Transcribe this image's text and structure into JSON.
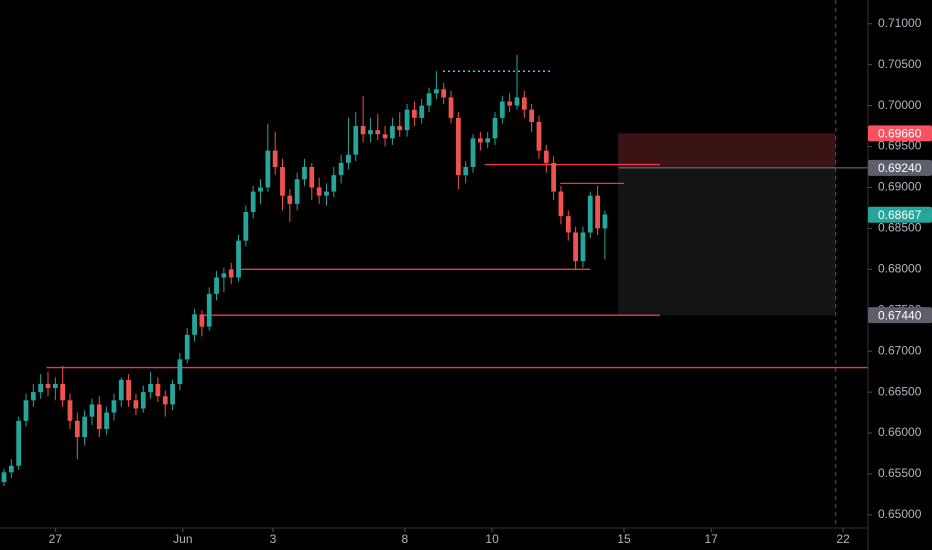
{
  "chart_data": {
    "type": "candlestick",
    "up_color": "#26a69a",
    "down_color": "#ef5350",
    "xlim": [
      -0.55,
      117.9
    ],
    "ylim": [
      0.6484,
      0.7129
    ],
    "xticks": [
      {
        "value": 7,
        "label": "27"
      },
      {
        "value": 24.4,
        "label": "Jun"
      },
      {
        "value": 36.7,
        "label": "3"
      },
      {
        "value": 54.7,
        "label": "8"
      },
      {
        "value": 66.6,
        "label": "10"
      },
      {
        "value": 84.6,
        "label": "15"
      },
      {
        "value": 96.5,
        "label": "17"
      },
      {
        "value": 114.5,
        "label": "22"
      }
    ],
    "yticks": [
      {
        "value": 0.65,
        "label": "0.65000"
      },
      {
        "value": 0.655,
        "label": "0.65500"
      },
      {
        "value": 0.66,
        "label": "0.66000"
      },
      {
        "value": 0.665,
        "label": "0.66500"
      },
      {
        "value": 0.67,
        "label": "0.67000"
      },
      {
        "value": 0.675,
        "label": "0.67500"
      },
      {
        "value": 0.68,
        "label": "0.68000"
      },
      {
        "value": 0.685,
        "label": "0.68500"
      },
      {
        "value": 0.69,
        "label": "0.69000"
      },
      {
        "value": 0.695,
        "label": "0.69500"
      },
      {
        "value": 0.7,
        "label": "0.70000"
      },
      {
        "value": 0.705,
        "label": "0.70500"
      },
      {
        "value": 0.71,
        "label": "0.71000"
      }
    ],
    "x": [
      0,
      1,
      2,
      3,
      4,
      5,
      6,
      7,
      8,
      9,
      10,
      11,
      12,
      13,
      14,
      15,
      16,
      17,
      18,
      19,
      20,
      21,
      22,
      23,
      24,
      25,
      26,
      27,
      28,
      29,
      30,
      31,
      32,
      33,
      34,
      35,
      36,
      37,
      38,
      39,
      40,
      41,
      42,
      43,
      44,
      45,
      46,
      47,
      48,
      49,
      50,
      51,
      52,
      53,
      54,
      55,
      56,
      57,
      58,
      59,
      60,
      61,
      62,
      63,
      64,
      65,
      66,
      67,
      68,
      69,
      70,
      71,
      72,
      73,
      74,
      75,
      76,
      77,
      78,
      79,
      80,
      81,
      82
    ],
    "ohlc": [
      [
        0.654,
        0.6556,
        0.6535,
        0.6552
      ],
      [
        0.6552,
        0.6568,
        0.6545,
        0.656
      ],
      [
        0.656,
        0.662,
        0.6555,
        0.6615
      ],
      [
        0.6615,
        0.6648,
        0.6608,
        0.664
      ],
      [
        0.664,
        0.666,
        0.6632,
        0.665
      ],
      [
        0.665,
        0.6672,
        0.6642,
        0.666
      ],
      [
        0.666,
        0.6675,
        0.6645,
        0.6655
      ],
      [
        0.6655,
        0.6668,
        0.664,
        0.666
      ],
      [
        0.666,
        0.6682,
        0.6632,
        0.664
      ],
      [
        0.664,
        0.6648,
        0.6605,
        0.6615
      ],
      [
        0.6615,
        0.6625,
        0.6568,
        0.6595
      ],
      [
        0.6595,
        0.6628,
        0.6585,
        0.662
      ],
      [
        0.662,
        0.6642,
        0.661,
        0.6635
      ],
      [
        0.6635,
        0.6645,
        0.6595,
        0.6605
      ],
      [
        0.6605,
        0.6632,
        0.6598,
        0.6625
      ],
      [
        0.6625,
        0.6648,
        0.6615,
        0.664
      ],
      [
        0.664,
        0.6668,
        0.6632,
        0.6665
      ],
      [
        0.6665,
        0.6672,
        0.6632,
        0.664
      ],
      [
        0.664,
        0.6648,
        0.6622,
        0.663
      ],
      [
        0.663,
        0.6658,
        0.6625,
        0.665
      ],
      [
        0.665,
        0.6675,
        0.6642,
        0.666
      ],
      [
        0.666,
        0.6668,
        0.6638,
        0.6645
      ],
      [
        0.6645,
        0.6652,
        0.662,
        0.6635
      ],
      [
        0.6635,
        0.6665,
        0.6628,
        0.666
      ],
      [
        0.666,
        0.6698,
        0.6652,
        0.669
      ],
      [
        0.669,
        0.6728,
        0.6685,
        0.672
      ],
      [
        0.672,
        0.6752,
        0.6712,
        0.6745
      ],
      [
        0.6745,
        0.675,
        0.6718,
        0.673
      ],
      [
        0.673,
        0.6778,
        0.6725,
        0.677
      ],
      [
        0.677,
        0.6798,
        0.6762,
        0.679
      ],
      [
        0.679,
        0.6802,
        0.6772,
        0.6795
      ],
      [
        0.68,
        0.6808,
        0.6782,
        0.679
      ],
      [
        0.679,
        0.6842,
        0.6785,
        0.6835
      ],
      [
        0.6835,
        0.6878,
        0.6828,
        0.687
      ],
      [
        0.687,
        0.6902,
        0.6862,
        0.6895
      ],
      [
        0.6895,
        0.691,
        0.688,
        0.69
      ],
      [
        0.69,
        0.6978,
        0.6895,
        0.6945
      ],
      [
        0.6945,
        0.6968,
        0.6915,
        0.6925
      ],
      [
        0.6925,
        0.6935,
        0.6872,
        0.689
      ],
      [
        0.689,
        0.6898,
        0.6858,
        0.688
      ],
      [
        0.688,
        0.6918,
        0.6872,
        0.691
      ],
      [
        0.691,
        0.6935,
        0.6902,
        0.6925
      ],
      [
        0.6925,
        0.693,
        0.6885,
        0.69
      ],
      [
        0.69,
        0.6912,
        0.688,
        0.689
      ],
      [
        0.689,
        0.6905,
        0.6878,
        0.6895
      ],
      [
        0.6895,
        0.6925,
        0.6888,
        0.6915
      ],
      [
        0.6915,
        0.694,
        0.6905,
        0.693
      ],
      [
        0.693,
        0.6985,
        0.6922,
        0.694
      ],
      [
        0.694,
        0.6992,
        0.6932,
        0.6975
      ],
      [
        0.6975,
        0.7012,
        0.6955,
        0.6965
      ],
      [
        0.6965,
        0.6985,
        0.6955,
        0.697
      ],
      [
        0.697,
        0.699,
        0.6958,
        0.6965
      ],
      [
        0.6965,
        0.6975,
        0.695,
        0.696
      ],
      [
        0.696,
        0.6985,
        0.6952,
        0.6975
      ],
      [
        0.6975,
        0.6992,
        0.6962,
        0.697
      ],
      [
        0.697,
        0.7002,
        0.6962,
        0.6995
      ],
      [
        0.6995,
        0.7005,
        0.6975,
        0.6985
      ],
      [
        0.6985,
        0.7008,
        0.6978,
        0.7
      ],
      [
        0.7,
        0.7022,
        0.6992,
        0.7015
      ],
      [
        0.7015,
        0.7042,
        0.7008,
        0.702
      ],
      [
        0.702,
        0.7028,
        0.7002,
        0.701
      ],
      [
        0.701,
        0.7018,
        0.6978,
        0.6985
      ],
      [
        0.6985,
        0.6992,
        0.6898,
        0.6915
      ],
      [
        0.6915,
        0.6932,
        0.6905,
        0.6925
      ],
      [
        0.6925,
        0.6965,
        0.6918,
        0.696
      ],
      [
        0.696,
        0.6968,
        0.6945,
        0.6955
      ],
      [
        0.6955,
        0.6968,
        0.6948,
        0.696
      ],
      [
        0.696,
        0.6992,
        0.6952,
        0.6985
      ],
      [
        0.6985,
        0.7012,
        0.6978,
        0.7005
      ],
      [
        0.7005,
        0.7015,
        0.6992,
        0.7
      ],
      [
        0.7,
        0.7062,
        0.6995,
        0.701
      ],
      [
        0.701,
        0.7018,
        0.6985,
        0.6995
      ],
      [
        0.6995,
        0.7002,
        0.6968,
        0.698
      ],
      [
        0.698,
        0.6988,
        0.6935,
        0.6945
      ],
      [
        0.6945,
        0.6952,
        0.6918,
        0.693
      ],
      [
        0.693,
        0.6938,
        0.6885,
        0.6895
      ],
      [
        0.6895,
        0.6902,
        0.6855,
        0.6865
      ],
      [
        0.6865,
        0.6872,
        0.6835,
        0.6845
      ],
      [
        0.6845,
        0.6852,
        0.68,
        0.681
      ],
      [
        0.681,
        0.6852,
        0.6802,
        0.6845
      ],
      [
        0.6845,
        0.6895,
        0.6838,
        0.689
      ],
      [
        0.689,
        0.6902,
        0.6842,
        0.685
      ],
      [
        0.685,
        0.6872,
        0.6812,
        0.6867
      ]
    ],
    "levels": [
      {
        "value": 0.668,
        "start": 5.8,
        "end": 117.9,
        "color": "#f23645"
      },
      {
        "value": 0.68,
        "start": 32.2,
        "end": 80,
        "color": "#f23645"
      },
      {
        "value": 0.6744,
        "start": 27.2,
        "end": 89.5,
        "color": "#f23645"
      },
      {
        "value": 0.6928,
        "start": 65.6,
        "end": 89.5,
        "color": "#f23645"
      },
      {
        "value": 0.6905,
        "start": 75.9,
        "end": 84.6,
        "color": "#f23645"
      }
    ],
    "dotted_level": {
      "value": 0.7042,
      "start": 59.9,
      "end": 74.7,
      "color": "#4fc3f7"
    },
    "position": {
      "start": 83.8,
      "end": 113.5,
      "stop": 0.6966,
      "entry": 0.6924,
      "target": 0.6744,
      "stop_color": "#3a1414",
      "target_color": "#131416",
      "entry_color": "#787b86"
    },
    "marker_x": 113.5,
    "price_labels": [
      {
        "value": 0.6966,
        "label": "0.69660",
        "color": "#f7525f"
      },
      {
        "value": 0.6924,
        "label": "0.69240",
        "color": "#5d606b"
      },
      {
        "value": 0.68667,
        "label": "0.68667",
        "color": "#26a69a"
      },
      {
        "value": 0.6744,
        "label": "0.67440",
        "color": "#5d606b"
      }
    ]
  }
}
